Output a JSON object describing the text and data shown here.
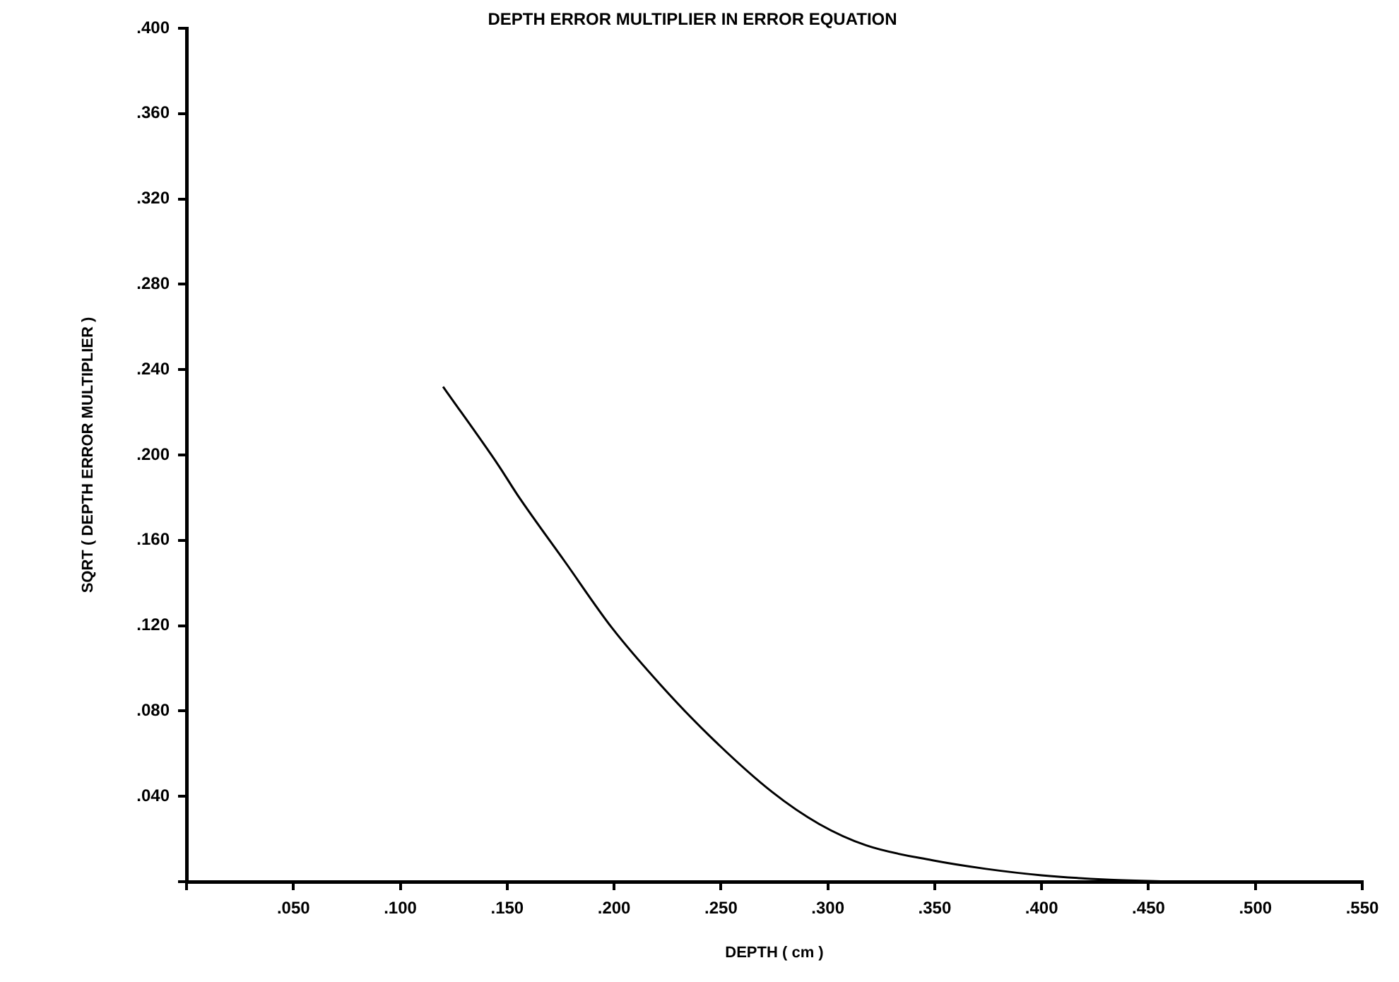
{
  "chart_data": {
    "type": "line",
    "title": "DEPTH ERROR MULTIPLIER IN ERROR EQUATION",
    "xlabel": "DEPTH ( cm )",
    "ylabel": "SQRT ( DEPTH ERROR MULTIPLIER )",
    "x": [
      0.12,
      0.146,
      0.155,
      0.177,
      0.199,
      0.222,
      0.245,
      0.274,
      0.296,
      0.318,
      0.349,
      0.374,
      0.4,
      0.43,
      0.46
    ],
    "series": [
      {
        "color": "#000000",
        "values": [
          0.232,
          0.195,
          0.181,
          0.15,
          0.119,
          0.092,
          0.068,
          0.042,
          0.027,
          0.017,
          0.01,
          0.006,
          0.003,
          0.001,
          0
        ]
      }
    ],
    "xlim": [
      0,
      0.55
    ],
    "xticks": [
      {
        "value": 0,
        "label": null
      },
      {
        "value": 0.05,
        "label": ".050"
      },
      {
        "value": 0.1,
        "label": ".100"
      },
      {
        "value": 0.15,
        "label": ".150"
      },
      {
        "value": 0.2,
        "label": ".200"
      },
      {
        "value": 0.25,
        "label": ".250"
      },
      {
        "value": 0.3,
        "label": ".300"
      },
      {
        "value": 0.35,
        "label": ".350"
      },
      {
        "value": 0.4,
        "label": ".400"
      },
      {
        "value": 0.45,
        "label": ".450"
      },
      {
        "value": 0.5,
        "label": ".500"
      },
      {
        "value": 0.55,
        "label": ".550"
      }
    ],
    "ylim": [
      0,
      0.4
    ],
    "yticks": [
      {
        "value": 0,
        "label": null
      },
      {
        "value": 0.04,
        "label": ".040"
      },
      {
        "value": 0.08,
        "label": ".080"
      },
      {
        "value": 0.12,
        "label": ".120"
      },
      {
        "value": 0.16,
        "label": ".160"
      },
      {
        "value": 0.2,
        "label": ".200"
      },
      {
        "value": 0.24,
        "label": ".240"
      },
      {
        "value": 0.28,
        "label": ".280"
      },
      {
        "value": 0.32,
        "label": ".320"
      },
      {
        "value": 0.36,
        "label": ".360"
      },
      {
        "value": 0.4,
        "label": ".400"
      }
    ],
    "grid": false,
    "legend": false,
    "marker": "none",
    "line_style": "solid"
  }
}
